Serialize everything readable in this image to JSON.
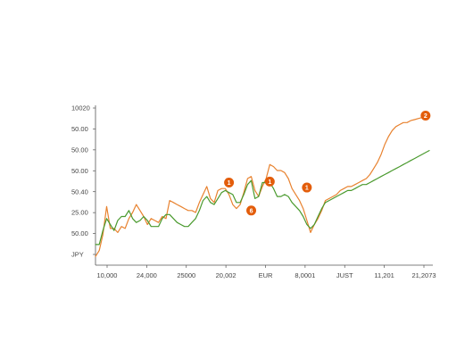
{
  "chart_data": {
    "type": "line",
    "title": "",
    "xlabel": "",
    "ylabel": "",
    "grid": false,
    "legend": "none",
    "y_tick_labels": [
      "10020",
      "50.00",
      "50.00",
      "50.00",
      "50.40",
      "25.00",
      "50.00",
      "JPY"
    ],
    "x_tick_labels": [
      "10,000",
      "24,000",
      "25000",
      "20,002",
      "EUR",
      "8,0001",
      "JUST",
      "11,201",
      "21,2073"
    ],
    "x": [
      0,
      1,
      2,
      3,
      4,
      5,
      6,
      7,
      8,
      9,
      10,
      11,
      12,
      13,
      14,
      15,
      16,
      17,
      18,
      19,
      20,
      21,
      22,
      23,
      24,
      25,
      26,
      27,
      28,
      29,
      30,
      31,
      32,
      33,
      34,
      35,
      36,
      37,
      38,
      39,
      40,
      41,
      42,
      43,
      44,
      45,
      46,
      47,
      48,
      49,
      50,
      51,
      52,
      53,
      54,
      55,
      56,
      57,
      58,
      59,
      60,
      61,
      62,
      63,
      64,
      65,
      66,
      67,
      68,
      69,
      70,
      71,
      72,
      73,
      74,
      75,
      76,
      77,
      78,
      79,
      80,
      81,
      82,
      83,
      84,
      85,
      86,
      87,
      88,
      89,
      90
    ],
    "xlim": [
      0,
      90
    ],
    "ylim": [
      0,
      7.55
    ],
    "series": [
      {
        "color": "#e8822f",
        "values": [
          0.3,
          0.6,
          1.4,
          2.8,
          1.7,
          1.7,
          1.5,
          1.8,
          1.7,
          2.2,
          2.5,
          2.9,
          2.6,
          2.3,
          1.9,
          2.2,
          2.1,
          2.0,
          2.3,
          2.2,
          3.1,
          3.0,
          2.9,
          2.8,
          2.7,
          2.6,
          2.6,
          2.5,
          3.0,
          3.4,
          3.8,
          3.2,
          3.0,
          3.6,
          3.7,
          3.7,
          3.4,
          2.9,
          2.7,
          2.9,
          3.5,
          4.2,
          4.3,
          3.6,
          3.3,
          3.8,
          4.2,
          4.9,
          4.8,
          4.6,
          4.6,
          4.5,
          4.2,
          3.7,
          3.4,
          3.1,
          2.7,
          2.1,
          1.5,
          1.9,
          2.2,
          2.6,
          3.1,
          3.2,
          3.3,
          3.4,
          3.6,
          3.7,
          3.8,
          3.8,
          3.9,
          4.0,
          4.1,
          4.2,
          4.4,
          4.7,
          5.0,
          5.4,
          5.9,
          6.3,
          6.6,
          6.8,
          6.9,
          7.0,
          7.0,
          7.1,
          7.15,
          7.2,
          7.25,
          7.3,
          7.35
        ]
      },
      {
        "color": "#4a9a2e",
        "values": [
          0.9,
          0.9,
          1.6,
          2.2,
          1.9,
          1.6,
          2.1,
          2.3,
          2.3,
          2.6,
          2.2,
          2.0,
          2.1,
          2.3,
          2.1,
          1.8,
          1.8,
          1.8,
          2.2,
          2.4,
          2.4,
          2.2,
          2.0,
          1.9,
          1.8,
          1.8,
          2.0,
          2.2,
          2.6,
          3.1,
          3.3,
          3.0,
          2.9,
          3.2,
          3.5,
          3.6,
          3.5,
          3.4,
          3.0,
          3.0,
          3.4,
          3.9,
          4.1,
          3.2,
          3.3,
          4.0,
          4.0,
          4.0,
          3.7,
          3.3,
          3.3,
          3.4,
          3.3,
          3.0,
          2.8,
          2.6,
          2.3,
          1.9,
          1.7,
          1.9,
          2.3,
          2.7,
          3.0,
          3.1,
          3.2,
          3.3,
          3.4,
          3.5,
          3.6,
          3.6,
          3.7,
          3.8,
          3.9,
          3.9,
          4.0,
          4.1,
          4.2,
          4.3,
          4.4,
          4.5,
          4.6,
          4.7,
          4.8,
          4.9,
          5.0,
          5.1,
          5.2,
          5.3,
          5.4,
          5.5,
          5.6
        ]
      }
    ],
    "markers": [
      {
        "label": "1",
        "x": 36,
        "y": 4.0,
        "color": "#e35d0b"
      },
      {
        "label": "6",
        "x": 42,
        "y": 2.6,
        "color": "#e35d0b"
      },
      {
        "label": "1",
        "x": 47,
        "y": 4.05,
        "color": "#e35d0b"
      },
      {
        "label": "1",
        "x": 57,
        "y": 3.75,
        "color": "#e35d0b"
      },
      {
        "label": "2",
        "x": 89,
        "y": 7.35,
        "color": "#e35d0b"
      }
    ]
  }
}
